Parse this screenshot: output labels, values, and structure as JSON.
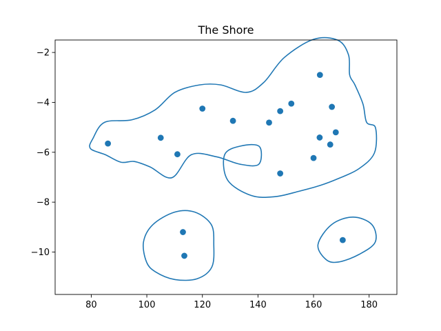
{
  "chart_data": {
    "type": "scatter",
    "title": "The Shore",
    "xlabel": "",
    "ylabel": "",
    "xlim": [
      67,
      190
    ],
    "ylim": [
      -11.7,
      -1.5
    ],
    "xticks": [
      80,
      100,
      120,
      140,
      160,
      180
    ],
    "yticks": [
      -2,
      -4,
      -6,
      -8,
      -10
    ],
    "grid": false,
    "legend": "none",
    "colors": {
      "points": "#1f77b4",
      "contours": "#1f77b4"
    },
    "points": [
      {
        "x": 86,
        "y": -5.65
      },
      {
        "x": 105,
        "y": -5.42
      },
      {
        "x": 111,
        "y": -6.08
      },
      {
        "x": 120,
        "y": -4.25
      },
      {
        "x": 131,
        "y": -4.74
      },
      {
        "x": 144,
        "y": -4.81
      },
      {
        "x": 148,
        "y": -4.35
      },
      {
        "x": 152,
        "y": -4.05
      },
      {
        "x": 162.3,
        "y": -2.9
      },
      {
        "x": 166.6,
        "y": -4.18
      },
      {
        "x": 168,
        "y": -5.2
      },
      {
        "x": 162.2,
        "y": -5.41
      },
      {
        "x": 166,
        "y": -5.69
      },
      {
        "x": 160,
        "y": -6.23
      },
      {
        "x": 148,
        "y": -6.85
      },
      {
        "x": 113,
        "y": -9.2
      },
      {
        "x": 113.5,
        "y": -10.15
      },
      {
        "x": 170.5,
        "y": -9.52
      }
    ],
    "contours": [
      [
        [
          84.8,
          -4.8
        ],
        [
          94.6,
          -4.7
        ],
        [
          103,
          -4.3
        ],
        [
          110.1,
          -3.6
        ],
        [
          119,
          -3.3
        ],
        [
          126.6,
          -3.3
        ],
        [
          135.8,
          -3.6
        ],
        [
          142.1,
          -3.2
        ],
        [
          149.5,
          -2.2
        ],
        [
          160.1,
          -1.47
        ],
        [
          168.8,
          -1.51
        ],
        [
          172.6,
          -2.1
        ],
        [
          173,
          -2.9
        ],
        [
          174.9,
          -3.3
        ],
        [
          177.8,
          -4.07
        ],
        [
          179.1,
          -4.8
        ],
        [
          182.3,
          -5.02
        ],
        [
          181.9,
          -6.03
        ],
        [
          176.2,
          -6.67
        ],
        [
          168.8,
          -7.06
        ],
        [
          162.4,
          -7.33
        ],
        [
          154.9,
          -7.56
        ],
        [
          146.1,
          -7.78
        ],
        [
          137.5,
          -7.73
        ],
        [
          129.1,
          -7.12
        ],
        [
          128,
          -6.1
        ],
        [
          133.8,
          -5.75
        ],
        [
          140.5,
          -5.77
        ],
        [
          140.3,
          -6.48
        ],
        [
          133.6,
          -6.48
        ],
        [
          125,
          -6.18
        ],
        [
          116,
          -6.1
        ],
        [
          109,
          -7.02
        ],
        [
          101.2,
          -6.59
        ],
        [
          95.5,
          -6.37
        ],
        [
          90.7,
          -6.4
        ],
        [
          85.1,
          -6.1
        ],
        [
          79.7,
          -5.85
        ],
        [
          80.6,
          -5.45
        ]
      ],
      [
        [
          98.8,
          -9.6
        ],
        [
          102.2,
          -8.9
        ],
        [
          110,
          -8.4
        ],
        [
          117.3,
          -8.4
        ],
        [
          123.2,
          -8.9
        ],
        [
          124.1,
          -9.7
        ],
        [
          123.4,
          -10.6
        ],
        [
          118.1,
          -11.07
        ],
        [
          110,
          -11.1
        ],
        [
          103.2,
          -10.8
        ],
        [
          99.9,
          -10.4
        ]
      ],
      [
        [
          161.6,
          -9.7
        ],
        [
          166.5,
          -8.9
        ],
        [
          174.2,
          -8.6
        ],
        [
          181,
          -8.9
        ],
        [
          182.2,
          -9.6
        ],
        [
          176.3,
          -10.1
        ],
        [
          169,
          -10.4
        ],
        [
          164.5,
          -10.3
        ]
      ]
    ]
  }
}
